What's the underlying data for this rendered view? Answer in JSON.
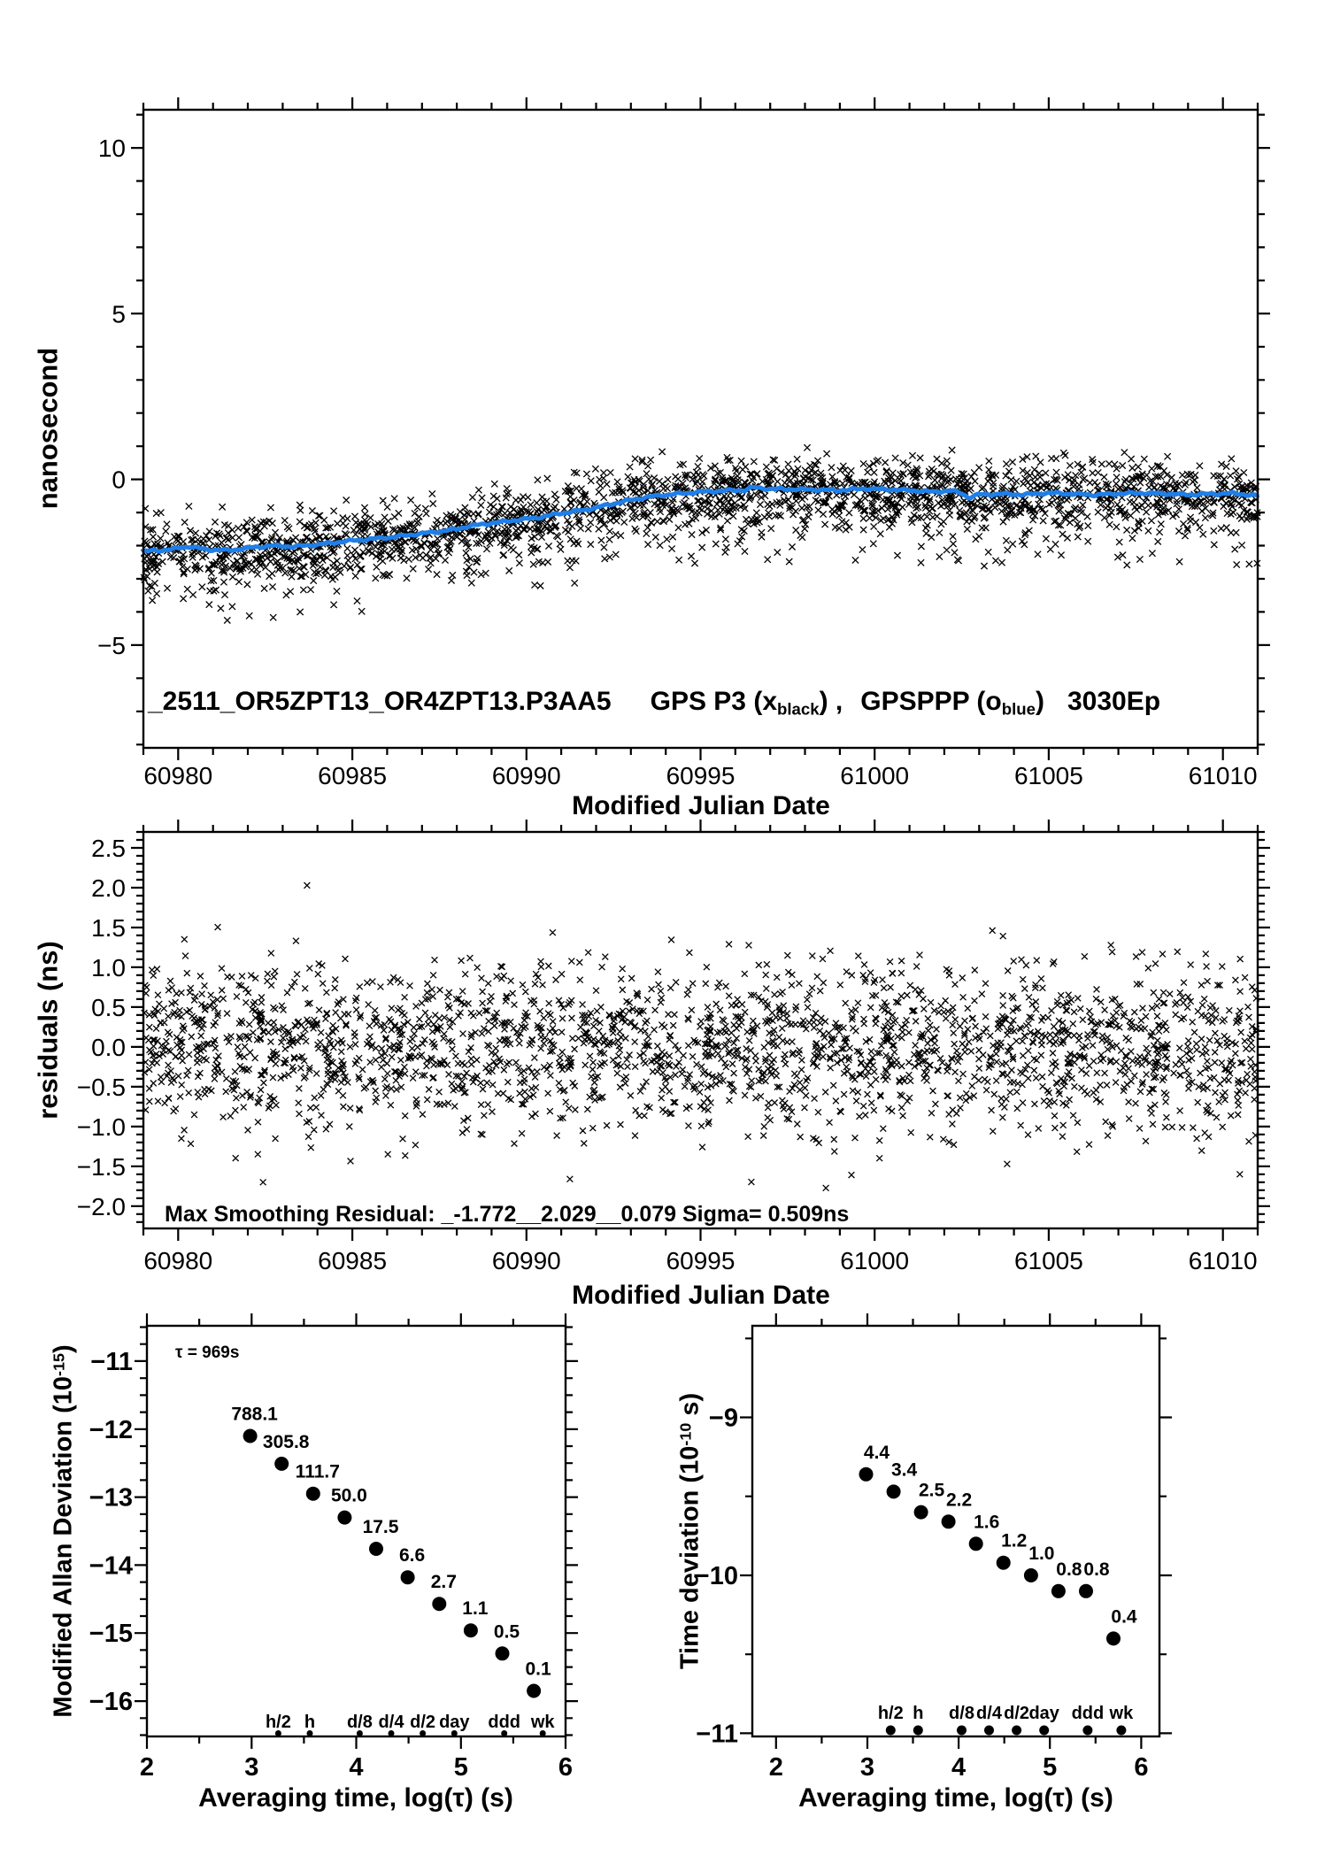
{
  "colors": {
    "background": "#FFFFFF",
    "marker_black": "#000000",
    "smooth_blue": "#1F7FE8",
    "label_red": "#F50000"
  },
  "labels": {
    "title": {
      "part1": "_2511_OR5ZPT13_OR4ZPT13.P3AA5",
      "part2_pre": "GPS P3 (x",
      "part2_sub": "black",
      "part2_post": ") ,",
      "part3_pre": "GPSPPP (o",
      "part3_sub": "blue",
      "part3_post": ")",
      "part4": "3030Ep"
    },
    "top": {
      "ylabel": "nanosecond",
      "xlabel": "Modified Julian Date"
    },
    "middle": {
      "ylabel": "residuals (ns)",
      "xlabel": "Modified Julian Date",
      "annotation": "Max Smoothing Residual: _-1.772__2.029__0.079  Sigma= 0.509ns"
    },
    "adev": {
      "ylabel_pre": "Modified Allan Deviation (10",
      "ylabel_sup": "-15",
      "ylabel_post": ")",
      "xlabel": "Averaging time, log(τ) (s)",
      "tau_note": "τ = 969s"
    },
    "tdev": {
      "ylabel_pre": "Time deviation (10",
      "ylabel_sup": "-10",
      "ylabel_post": " s)",
      "xlabel": "Averaging time, log(τ) (s)"
    }
  },
  "chart_data": [
    {
      "id": "gps-comparison",
      "type": "scatter",
      "marker": "x",
      "title": "_2511_OR5ZPT13_OR4ZPT13.P3AA5  GPS P3 (x black), GPSPPP (o blue)  3030Ep",
      "xlabel": "Modified Julian Date",
      "ylabel": "nanosecond",
      "xlim": [
        60979,
        61011
      ],
      "ylim": [
        -8.1,
        11.15
      ],
      "xticks": [
        60980,
        60985,
        60990,
        60995,
        61000,
        61005,
        61010
      ],
      "xtick_labels": [
        "60980",
        "60985",
        "60990",
        "60995",
        "61000",
        "61005",
        "61010"
      ],
      "yticks": [
        -5,
        0,
        5,
        10
      ],
      "ytick_labels": [
        "−5",
        "0",
        "5",
        "10"
      ],
      "x_minor_step": 1,
      "y_minor_step": 1,
      "smooth_trend_blue": [
        [
          60979.0,
          -2.17
        ],
        [
          60979.8,
          -2.12
        ],
        [
          60980.3,
          -2.02
        ],
        [
          60980.8,
          -2.12
        ],
        [
          60981.5,
          -2.14
        ],
        [
          60982.0,
          -2.07
        ],
        [
          60982.7,
          -2.0
        ],
        [
          60983.3,
          -2.03
        ],
        [
          60984.0,
          -1.97
        ],
        [
          60984.7,
          -1.88
        ],
        [
          60985.3,
          -1.82
        ],
        [
          60986.0,
          -1.76
        ],
        [
          60986.7,
          -1.67
        ],
        [
          60987.3,
          -1.6
        ],
        [
          60988.0,
          -1.5
        ],
        [
          60988.3,
          -1.42
        ],
        [
          60989.0,
          -1.32
        ],
        [
          60989.7,
          -1.23
        ],
        [
          60990.3,
          -1.16
        ],
        [
          60991.0,
          -1.02
        ],
        [
          60991.7,
          -0.92
        ],
        [
          60992.3,
          -0.78
        ],
        [
          60993.0,
          -0.62
        ],
        [
          60993.7,
          -0.5
        ],
        [
          60994.3,
          -0.44
        ],
        [
          60995.0,
          -0.38
        ],
        [
          60995.7,
          -0.34
        ],
        [
          60996.3,
          -0.32
        ],
        [
          60996.5,
          -0.24
        ],
        [
          60997.0,
          -0.29
        ],
        [
          60997.7,
          -0.3
        ],
        [
          60998.3,
          -0.31
        ],
        [
          60999.0,
          -0.33
        ],
        [
          60999.7,
          -0.28
        ],
        [
          61000.3,
          -0.3
        ],
        [
          61001.0,
          -0.33
        ],
        [
          61001.7,
          -0.38
        ],
        [
          61002.2,
          -0.34
        ],
        [
          61002.5,
          -0.42
        ],
        [
          61002.7,
          -0.55
        ],
        [
          61003.0,
          -0.46
        ],
        [
          61003.7,
          -0.44
        ],
        [
          61004.3,
          -0.46
        ],
        [
          61005.0,
          -0.41
        ],
        [
          61005.7,
          -0.44
        ],
        [
          61006.3,
          -0.47
        ],
        [
          61007.0,
          -0.43
        ],
        [
          61007.7,
          -0.41
        ],
        [
          61008.3,
          -0.43
        ],
        [
          61009.0,
          -0.46
        ],
        [
          61009.7,
          -0.44
        ],
        [
          61010.3,
          -0.42
        ],
        [
          61011.0,
          -0.5
        ]
      ],
      "render": {
        "n_points": 2300,
        "noise_sigma_ns": 0.48,
        "tail_fraction": 0.17,
        "seed": 7
      }
    },
    {
      "id": "residuals",
      "type": "scatter",
      "marker": "x",
      "xlabel": "Modified Julian Date",
      "ylabel": "residuals (ns)",
      "xlim": [
        60979,
        61011
      ],
      "ylim": [
        -2.28,
        2.7
      ],
      "xticks": [
        60980,
        60985,
        60990,
        60995,
        61000,
        61005,
        61010
      ],
      "xtick_labels": [
        "60980",
        "60985",
        "60990",
        "60995",
        "61000",
        "61005",
        "61010"
      ],
      "yticks": [
        2.5,
        2.0,
        1.5,
        1.0,
        0.5,
        0.0,
        -0.5,
        -1.0,
        -1.5,
        -2.0
      ],
      "ytick_labels": [
        "2.5",
        "2.0",
        "1.5",
        "1.0",
        "0.5",
        "0.0",
        "−0.5",
        "−1.0",
        "−1.5",
        "−2.0"
      ],
      "x_minor_step": 1,
      "y_minor_step": 0.1,
      "annotation": "Max Smoothing Residual: _-1.772__2.029__0.079  Sigma= 0.509ns",
      "stats": {
        "min_residual_ns": -1.772,
        "max_residual_ns": 2.029,
        "mean_ns": 0.079,
        "sigma_ns": 0.509
      },
      "outliers": [
        [
          60983.7,
          2.029
        ],
        [
          60998.6,
          -1.772
        ]
      ],
      "render": {
        "n_points": 2300,
        "seed": 13
      }
    },
    {
      "id": "mdev",
      "type": "scatter",
      "marker": "dot",
      "xlabel": "Averaging time, log(τ) (s)",
      "ylabel": "Modified Allan Deviation (10^-15)",
      "tau_note": "τ = 969s",
      "tau0_seconds": 969,
      "xlim": [
        2,
        6
      ],
      "ylim": [
        -16.52,
        -10.48
      ],
      "xticks": [
        2,
        3,
        4,
        5,
        6
      ],
      "xtick_labels": [
        "2",
        "3",
        "4",
        "5",
        "6"
      ],
      "yticks": [
        -11,
        -12,
        -13,
        -14,
        -15,
        -16
      ],
      "ytick_labels": [
        "−11",
        "−12",
        "−13",
        "−14",
        "−15",
        "−16"
      ],
      "x_minor_step": 0.5,
      "y_minor_step": 0.25,
      "x": [
        2.986,
        3.287,
        3.588,
        3.889,
        4.19,
        4.491,
        4.793,
        5.094,
        5.395,
        5.696
      ],
      "y": [
        -12.1,
        -12.51,
        -12.95,
        -13.3,
        -13.76,
        -14.18,
        -14.57,
        -14.96,
        -15.3,
        -15.85
      ],
      "values_1e15": [
        788.1,
        305.8,
        111.7,
        50.0,
        17.5,
        6.6,
        2.7,
        1.1,
        0.5,
        0.1
      ],
      "point_labels": [
        "788.1",
        "305.8",
        "111.7",
        "50.0",
        "17.5",
        "6.6",
        "2.7",
        "1.1",
        "0.5",
        "0.1"
      ],
      "time_markers": {
        "labels": [
          "h/2",
          "h",
          "d/8",
          "d/4",
          "d/2",
          "day",
          "ddd",
          "wk"
        ],
        "x": [
          3.255,
          3.556,
          4.033,
          4.334,
          4.635,
          4.937,
          5.414,
          5.782
        ]
      }
    },
    {
      "id": "tdev",
      "type": "scatter",
      "marker": "dot",
      "xlabel": "Averaging time, log(τ) (s)",
      "ylabel": "Time deviation (10^-10 s)",
      "xlim": [
        1.74,
        6.2
      ],
      "ylim": [
        -11.02,
        -8.42
      ],
      "xticks": [
        2,
        3,
        4,
        5,
        6
      ],
      "xtick_labels": [
        "2",
        "3",
        "4",
        "5",
        "6"
      ],
      "yticks": [
        -9,
        -10,
        -11
      ],
      "ytick_labels": [
        "−9",
        "−10",
        "−11"
      ],
      "x_minor_step": 0.5,
      "y_minor_step": 0.5,
      "x": [
        2.986,
        3.287,
        3.588,
        3.889,
        4.19,
        4.491,
        4.793,
        5.094,
        5.395,
        5.696
      ],
      "y": [
        -9.36,
        -9.47,
        -9.6,
        -9.66,
        -9.8,
        -9.92,
        -10.0,
        -10.1,
        -10.1,
        -10.4
      ],
      "values_1e10": [
        4.4,
        3.4,
        2.5,
        2.2,
        1.6,
        1.2,
        1.0,
        0.8,
        0.8,
        0.4
      ],
      "point_labels": [
        "4.4",
        "3.4",
        "2.5",
        "2.2",
        "1.6",
        "1.2",
        "1.0",
        "0.8",
        "0.8",
        "0.4"
      ],
      "time_markers": {
        "labels": [
          "h/2",
          "h",
          "d/8",
          "d/4",
          "d/2",
          "day",
          "ddd",
          "wk"
        ],
        "x": [
          3.255,
          3.556,
          4.033,
          4.334,
          4.635,
          4.937,
          5.414,
          5.782
        ]
      }
    }
  ]
}
